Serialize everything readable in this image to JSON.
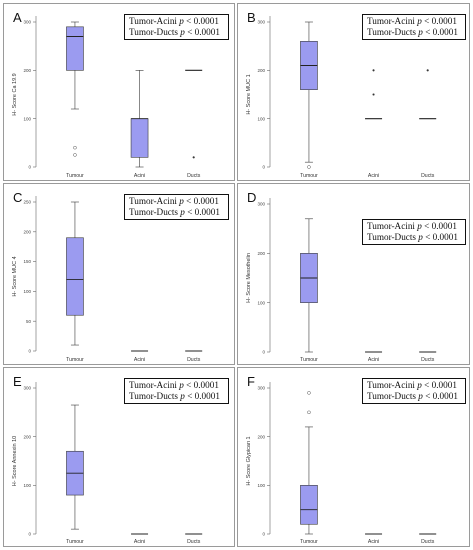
{
  "chart_data": [
    {
      "type": "boxplot",
      "panel_label": "A",
      "ylabel": "H- Score Ca 19.9",
      "ylim": [
        0,
        300
      ],
      "yticks": [
        0,
        100,
        200,
        300
      ],
      "categories": [
        "Tumour",
        "Acini",
        "Ducts"
      ],
      "boxes": [
        {
          "category": "Tumour",
          "min": 120,
          "q1": 200,
          "median": 270,
          "q3": 290,
          "max": 300,
          "outliers": [
            40,
            25
          ]
        },
        {
          "category": "Acini",
          "min": 0,
          "q1": 20,
          "median": 100,
          "q3": 100,
          "max": 200,
          "outliers": []
        },
        {
          "category": "Ducts",
          "min": 200,
          "q1": 200,
          "median": 200,
          "q3": 200,
          "max": 200,
          "outliers": [
            20
          ]
        }
      ],
      "stats": [
        {
          "label": "Tumor-Acini",
          "p": "p",
          "value": "< 0.0001"
        },
        {
          "label": "Tumor-Ducts",
          "p": "p",
          "value": "< 0.0001"
        }
      ]
    },
    {
      "type": "boxplot",
      "panel_label": "B",
      "ylabel": "H- Score MUC 1",
      "ylim": [
        0,
        300
      ],
      "yticks": [
        0,
        100,
        200,
        300
      ],
      "categories": [
        "Tumour",
        "Acini",
        "Ducts"
      ],
      "boxes": [
        {
          "category": "Tumour",
          "min": 10,
          "q1": 160,
          "median": 210,
          "q3": 260,
          "max": 300,
          "outliers": [
            0
          ]
        },
        {
          "category": "Acini",
          "min": 100,
          "q1": 100,
          "median": 100,
          "q3": 100,
          "max": 100,
          "outliers": [
            200,
            150
          ]
        },
        {
          "category": "Ducts",
          "min": 100,
          "q1": 100,
          "median": 100,
          "q3": 100,
          "max": 100,
          "outliers": [
            200
          ]
        }
      ],
      "stats": [
        {
          "label": "Tumor-Acini",
          "p": "p",
          "value": "< 0.0001"
        },
        {
          "label": "Tumor-Ducts",
          "p": "p",
          "value": "< 0.0001"
        }
      ]
    },
    {
      "type": "boxplot",
      "panel_label": "C",
      "ylabel": "H- Score MUC 4",
      "ylim": [
        0,
        250
      ],
      "yticks": [
        0,
        50,
        100,
        150,
        200,
        250
      ],
      "categories": [
        "Tumour",
        "Acini",
        "Ducts"
      ],
      "boxes": [
        {
          "category": "Tumour",
          "min": 10,
          "q1": 60,
          "median": 120,
          "q3": 190,
          "max": 250,
          "outliers": []
        },
        {
          "category": "Acini",
          "min": 0,
          "q1": 0,
          "median": 0,
          "q3": 0,
          "max": 0,
          "outliers": []
        },
        {
          "category": "Ducts",
          "min": 0,
          "q1": 0,
          "median": 0,
          "q3": 0,
          "max": 0,
          "outliers": []
        }
      ],
      "stats": [
        {
          "label": "Tumor-Acini",
          "p": "p",
          "value": "< 0.0001"
        },
        {
          "label": "Tumor-Ducts",
          "p": "p",
          "value": "< 0.0001"
        }
      ]
    },
    {
      "type": "boxplot",
      "panel_label": "D",
      "ylabel": "H- Score    Mesothelin",
      "ylim": [
        0,
        300
      ],
      "yticks": [
        0,
        100,
        200,
        300
      ],
      "categories": [
        "Tumour",
        "Acini",
        "Ducts"
      ],
      "boxes": [
        {
          "category": "Tumour",
          "min": 0,
          "q1": 100,
          "median": 150,
          "q3": 200,
          "max": 270,
          "outliers": []
        },
        {
          "category": "Acini",
          "min": 0,
          "q1": 0,
          "median": 0,
          "q3": 0,
          "max": 0,
          "outliers": []
        },
        {
          "category": "Ducts",
          "min": 0,
          "q1": 0,
          "median": 0,
          "q3": 0,
          "max": 0,
          "outliers": []
        }
      ],
      "stats": [
        {
          "label": "Tumor-Acini",
          "p": "p",
          "value": "< 0.0001"
        },
        {
          "label": "Tumor-Ducts",
          "p": "p",
          "value": "< 0.0001"
        }
      ]
    },
    {
      "type": "boxplot",
      "panel_label": "E",
      "ylabel": "H- Score    Annexin 10",
      "ylim": [
        0,
        300
      ],
      "yticks": [
        0,
        100,
        200,
        300
      ],
      "categories": [
        "Tumour",
        "Acini",
        "Ducts"
      ],
      "boxes": [
        {
          "category": "Tumour",
          "min": 10,
          "q1": 80,
          "median": 125,
          "q3": 170,
          "max": 265,
          "outliers": []
        },
        {
          "category": "Acini",
          "min": 0,
          "q1": 0,
          "median": 0,
          "q3": 0,
          "max": 0,
          "outliers": []
        },
        {
          "category": "Ducts",
          "min": 0,
          "q1": 0,
          "median": 0,
          "q3": 0,
          "max": 0,
          "outliers": []
        }
      ],
      "stats": [
        {
          "label": "Tumor-Acini",
          "p": "p",
          "value": "< 0.0001"
        },
        {
          "label": "Tumor-Ducts",
          "p": "p",
          "value": "< 0.0001"
        }
      ]
    },
    {
      "type": "boxplot",
      "panel_label": "F",
      "ylabel": "H- Score Glypican 1",
      "ylim": [
        0,
        300
      ],
      "yticks": [
        0,
        100,
        200,
        300
      ],
      "categories": [
        "Tumour",
        "Acini",
        "Ducts"
      ],
      "boxes": [
        {
          "category": "Tumour",
          "min": 0,
          "q1": 20,
          "median": 50,
          "q3": 100,
          "max": 220,
          "outliers": [
            290,
            250
          ]
        },
        {
          "category": "Acini",
          "min": 0,
          "q1": 0,
          "median": 0,
          "q3": 0,
          "max": 0,
          "outliers": []
        },
        {
          "category": "Ducts",
          "min": 0,
          "q1": 0,
          "median": 0,
          "q3": 0,
          "max": 0,
          "outliers": []
        }
      ],
      "stats": [
        {
          "label": "Tumor-Acini",
          "p": "p",
          "value": "< 0.0001"
        },
        {
          "label": "Tumor-Ducts",
          "p": "p",
          "value": "< 0.0001"
        }
      ]
    }
  ],
  "colors": {
    "box_fill": "#9b9bf0",
    "box_stroke": "#3a3a3a",
    "panel_border": "#9a9a9a"
  }
}
